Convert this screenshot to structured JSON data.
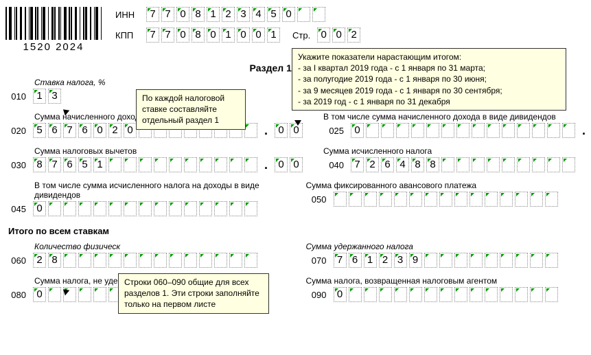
{
  "barcode_number": "1520  2024",
  "inn_label": "ИНН",
  "kpp_label": "КПП",
  "str_label": "Стр.",
  "inn": [
    "7",
    "7",
    "0",
    "8",
    "1",
    "2",
    "3",
    "4",
    "5",
    "0",
    "",
    ""
  ],
  "kpp": [
    "7",
    "7",
    "0",
    "8",
    "0",
    "1",
    "0",
    "0",
    "1"
  ],
  "page": [
    "0",
    "0",
    "2"
  ],
  "section_title": "Раздел 1. Обобщен",
  "labels": {
    "rate": "Ставка налога, %",
    "income": "Сумма начисленного дохода",
    "income_div": "В том числе сумма начисленного дохода в виде дивидендов",
    "deductions": "Сумма налоговых вычетов",
    "calc_tax": "Сумма исчисленного налога",
    "calc_tax_div": "В том числе сумма исчисленного налога на доходы в виде дивидендов",
    "fixed_adv": "Сумма фиксированного авансового платежа",
    "totals": "Итого по всем ставкам",
    "persons": "Количество физическ",
    "withheld": "Сумма удержанного налога",
    "not_withheld": "Сумма налога, не удержанная налоговым агентом",
    "returned": "Сумма налога, возвращенная налоговым агентом"
  },
  "nums": {
    "l010": "010",
    "l020": "020",
    "l025": "025",
    "l030": "030",
    "l040": "040",
    "l045": "045",
    "l050": "050",
    "l060": "060",
    "l070": "070",
    "l080": "080",
    "l090": "090"
  },
  "values": {
    "rate": [
      "1",
      "3"
    ],
    "v020_int": [
      "5",
      "6",
      "7",
      "6",
      "0",
      "2",
      "0",
      "",
      "",
      "",
      "",
      "",
      "",
      "",
      ""
    ],
    "v020_dec": [
      "0",
      "0"
    ],
    "v025_int": [
      "0",
      "",
      "",
      "",
      "",
      "",
      "",
      "",
      "",
      "",
      "",
      "",
      "",
      "",
      ""
    ],
    "v025_dec": [
      "0",
      "0"
    ],
    "v030_int": [
      "8",
      "7",
      "6",
      "5",
      "1",
      "",
      "",
      "",
      "",
      "",
      "",
      "",
      "",
      "",
      ""
    ],
    "v030_dec": [
      "0",
      "0"
    ],
    "v040": [
      "7",
      "2",
      "6",
      "4",
      "8",
      "8",
      "",
      "",
      "",
      "",
      "",
      "",
      "",
      "",
      ""
    ],
    "v045": [
      "0",
      "",
      "",
      "",
      "",
      "",
      "",
      "",
      "",
      "",
      "",
      "",
      "",
      "",
      ""
    ],
    "v050": [
      "",
      "",
      "",
      "",
      "",
      "",
      "",
      "",
      "",
      "",
      "",
      "",
      "",
      "",
      ""
    ],
    "v060": [
      "2",
      "8",
      "",
      "",
      "",
      "",
      "",
      "",
      "",
      "",
      "",
      "",
      "",
      "",
      ""
    ],
    "v070": [
      "7",
      "6",
      "1",
      "2",
      "3",
      "9",
      "",
      "",
      "",
      "",
      "",
      "",
      "",
      "",
      ""
    ],
    "v080": [
      "0",
      "",
      "",
      "",
      "",
      "",
      "",
      "",
      "",
      "",
      "",
      "",
      "",
      "",
      ""
    ],
    "v090": [
      "0",
      "",
      "",
      "",
      "",
      "",
      "",
      "",
      "",
      "",
      "",
      "",
      "",
      "",
      ""
    ]
  },
  "callouts": {
    "c1_l1": "По каждой налоговой",
    "c1_l2": "ставке составляйте",
    "c1_l3": "отдельный раздел 1",
    "c2_l1": "Укажите показатели нарастающим итогом:",
    "c2_l2": "- за I квартал 2019 года - с 1 января по 31 марта;",
    "c2_l3": "- за полугодие 2019 года - с 1 января по 30 июня;",
    "c2_l4": "- за 9 месяцев 2019 года - с 1 января по 30 сентября;",
    "c2_l5": "- за 2019 год - с 1 января по 31 декабря",
    "c3_l1": "Строки 060–090 общие для всех",
    "c3_l2": "разделов 1. Эти строки заполняйте",
    "c3_l3": "только на первом листе"
  }
}
